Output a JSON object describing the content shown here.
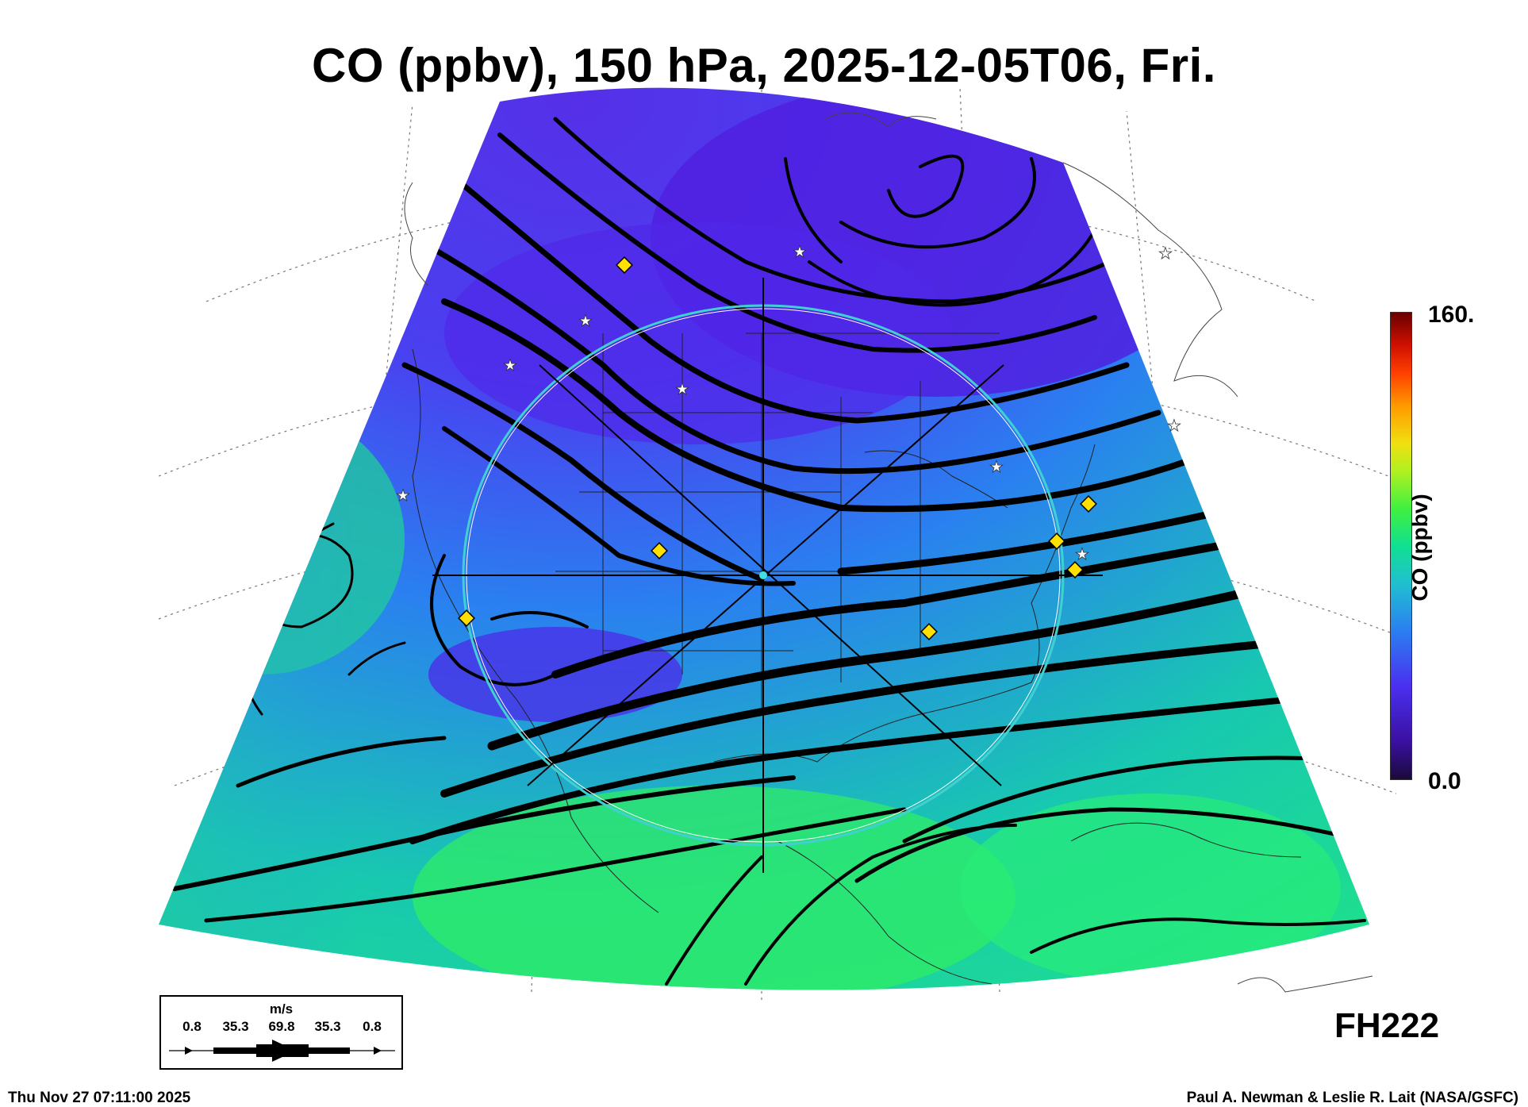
{
  "title": "CO (ppbv), 150 hPa, 2025-12-05T06, Fri.",
  "colorbar": {
    "max_label": "160.",
    "min_label": "0.0",
    "title": "CO (ppbv)",
    "range": [
      0,
      160
    ]
  },
  "forecast_hour": "FH222",
  "wind_legend": {
    "unit": "m/s",
    "values": [
      "0.8",
      "35.3",
      "69.8",
      "35.3",
      "0.8"
    ]
  },
  "footer": {
    "timestamp": "Thu Nov 27 07:11:00 2025",
    "credit": "Paul A. Newman & Leslie R. Lait (NASA/GSFC)"
  },
  "colors": {
    "co_low": "#4a20e0",
    "co_mid": "#2a90f0",
    "co_high": "#20e080",
    "streamline": "#000000",
    "range_ring": "#40d0d0",
    "site_marker": "#ffe000"
  },
  "markers": {
    "site_marker_icon": "yellow-diamond",
    "city_marker_icon": "white-star"
  }
}
